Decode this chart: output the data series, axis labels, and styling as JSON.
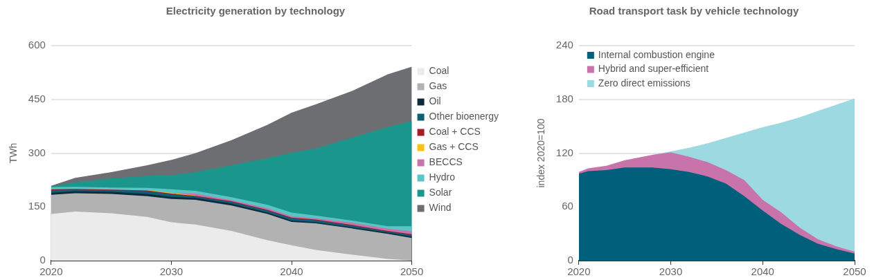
{
  "chart_data": [
    {
      "type": "area",
      "title": "Electricity generation by technology",
      "ylabel": "TWh",
      "stacked": true,
      "grid": "y",
      "legend": "right",
      "x": [
        2020,
        2022,
        2025,
        2028,
        2030,
        2032,
        2035,
        2038,
        2040,
        2042,
        2045,
        2048,
        2050
      ],
      "xlim": [
        2020,
        2050
      ],
      "xticks": [
        2020,
        2030,
        2040,
        2050
      ],
      "ylim": [
        0,
        600
      ],
      "yticks": [
        0,
        150,
        300,
        450,
        600
      ],
      "series": [
        {
          "name": "Coal",
          "color": "#ebebeb",
          "values": [
            130,
            137,
            132,
            122,
            107,
            101,
            83,
            57,
            43,
            30,
            17,
            5,
            0
          ]
        },
        {
          "name": "Gas",
          "color": "#b2b2b2",
          "values": [
            54,
            51,
            54,
            58,
            65,
            69,
            71,
            73,
            65,
            74,
            73,
            70,
            63
          ]
        },
        {
          "name": "Oil",
          "color": "#0c2a40",
          "values": [
            5,
            6,
            6,
            6,
            6,
            5,
            5,
            4,
            4,
            3,
            3,
            3,
            4
          ]
        },
        {
          "name": "Other bioenergy",
          "color": "#0e5e74",
          "values": [
            8,
            4,
            4,
            8,
            7,
            4,
            5,
            6,
            6,
            6,
            5,
            3,
            5
          ]
        },
        {
          "name": "Coal + CCS",
          "color": "#a31d28",
          "values": [
            2,
            2,
            2,
            2,
            2,
            2,
            2,
            2,
            2,
            2,
            2,
            2,
            2
          ]
        },
        {
          "name": "Gas + CCS",
          "color": "#f9c20f",
          "values": [
            null,
            null,
            null,
            1,
            2,
            1,
            null,
            null,
            null,
            null,
            null,
            null,
            null
          ]
        },
        {
          "name": "BECCS",
          "color": "#c774ad",
          "values": [
            null,
            null,
            null,
            null,
            0,
            5,
            3,
            4,
            4,
            3,
            6,
            6,
            8
          ]
        },
        {
          "name": "Hydro",
          "color": "#5ac5c4",
          "values": [
            6,
            6,
            6,
            6,
            10,
            8,
            8,
            10,
            10,
            8,
            6,
            7,
            14
          ]
        },
        {
          "name": "Solar",
          "color": "#1a968d",
          "values": [
            2,
            13,
            25,
            34,
            39,
            52,
            89,
            130,
            167,
            187,
            231,
            277,
            293
          ]
        },
        {
          "name": "Wind",
          "color": "#6d6e71",
          "values": [
            2,
            12,
            18,
            29,
            43,
            53,
            70,
            93,
            112,
            123,
            130,
            147,
            152
          ]
        }
      ]
    },
    {
      "type": "area",
      "title": "Road transport task by vehicle technology",
      "ylabel": "index 2020=100",
      "stacked": true,
      "grid": "y",
      "legend": "top left",
      "x": [
        2020,
        2021,
        2023,
        2025,
        2028,
        2030,
        2032,
        2034,
        2036,
        2038,
        2040,
        2042,
        2044,
        2046,
        2048,
        2050
      ],
      "xlim": [
        2020,
        2050
      ],
      "xticks": [
        2020,
        2030,
        2040,
        2050
      ],
      "ylim": [
        0,
        240
      ],
      "yticks": [
        0,
        60,
        120,
        180,
        240
      ],
      "series": [
        {
          "name": "Internal combustion engine",
          "color": "#005f7a",
          "values": [
            97,
            100,
            101,
            104,
            104,
            102,
            99,
            94,
            86,
            72,
            56,
            41,
            29,
            19,
            13,
            8
          ]
        },
        {
          "name": "Hybrid and super-efficient",
          "color": "#c874ab",
          "values": [
            2,
            3,
            5,
            8,
            14,
            19,
            17,
            16,
            15,
            18,
            12,
            13,
            8,
            5,
            3,
            2
          ]
        },
        {
          "name": "Zero direct emissions",
          "color": "#9dd9e1",
          "values": [
            null,
            null,
            null,
            null,
            0,
            1,
            10,
            21,
            36,
            53,
            81,
            100,
            123,
            143,
            158,
            171
          ]
        }
      ]
    }
  ]
}
